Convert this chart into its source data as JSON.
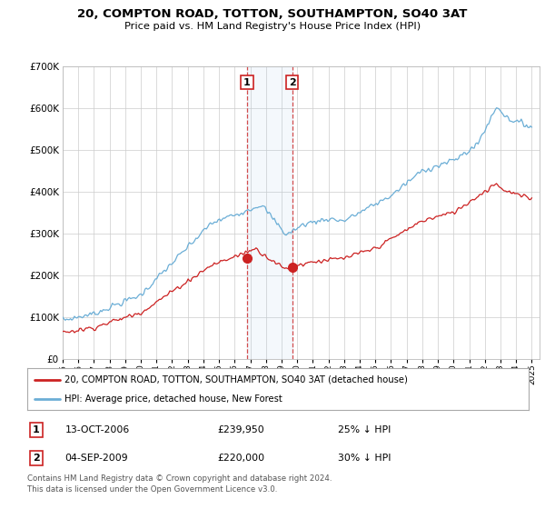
{
  "title": "20, COMPTON ROAD, TOTTON, SOUTHAMPTON, SO40 3AT",
  "subtitle": "Price paid vs. HM Land Registry's House Price Index (HPI)",
  "legend_line1": "20, COMPTON ROAD, TOTTON, SOUTHAMPTON, SO40 3AT (detached house)",
  "legend_line2": "HPI: Average price, detached house, New Forest",
  "transaction1_date": "13-OCT-2006",
  "transaction1_price": "£239,950",
  "transaction1_hpi": "25% ↓ HPI",
  "transaction2_date": "04-SEP-2009",
  "transaction2_price": "£220,000",
  "transaction2_hpi": "30% ↓ HPI",
  "footer": "Contains HM Land Registry data © Crown copyright and database right 2024.\nThis data is licensed under the Open Government Licence v3.0.",
  "hpi_color": "#6baed6",
  "price_color": "#cc2222",
  "transaction1_x": 2006.79,
  "transaction2_x": 2009.67,
  "background_color": "#ffffff",
  "grid_color": "#cccccc",
  "ylim_min": 0,
  "ylim_max": 700000,
  "xlim_min": 1995.0,
  "xlim_max": 2025.5
}
